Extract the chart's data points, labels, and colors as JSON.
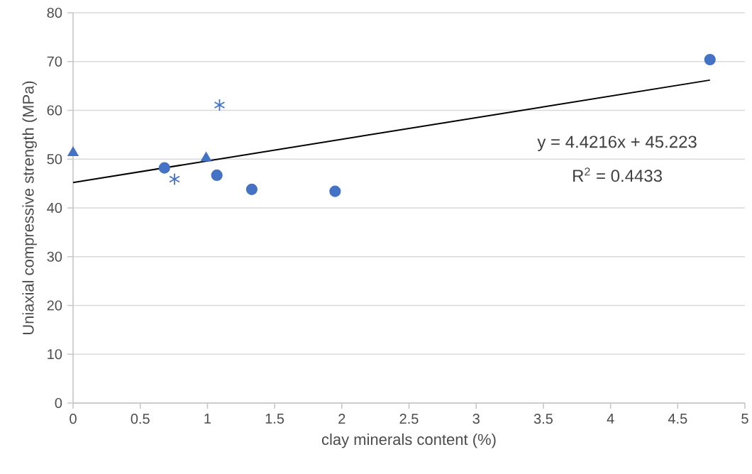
{
  "chart_data": {
    "type": "scatter",
    "xlabel": "clay minerals content (%)",
    "ylabel": "Uniaxial compressive strength (MPa)",
    "xlim": [
      0,
      5
    ],
    "xticks": [
      0,
      0.5,
      1,
      1.5,
      2,
      2.5,
      3,
      3.5,
      4,
      4.5,
      5
    ],
    "ylim": [
      0,
      80
    ],
    "yticks": [
      0,
      10,
      20,
      30,
      40,
      50,
      60,
      70,
      80
    ],
    "grid": "y",
    "series": [
      {
        "marker": "circle",
        "color": "#4472c4",
        "x": [
          0.68,
          1.07,
          1.33,
          1.95,
          4.74
        ],
        "values": [
          48.2,
          46.7,
          43.8,
          43.4,
          70.4
        ]
      },
      {
        "marker": "triangle",
        "color": "#4472c4",
        "x": [
          0,
          0.99
        ],
        "values": [
          51.3,
          50.2
        ]
      },
      {
        "marker": "cross",
        "color": "#4472c4",
        "x": [
          0.755,
          1.09
        ],
        "values": [
          45.9,
          61.1
        ]
      },
      {
        "type": "line",
        "marker": "none",
        "color": "#000000",
        "x": [
          0,
          4.74
        ],
        "values": [
          45.2,
          66.2
        ]
      }
    ],
    "annotations": [
      "y = 4.4216x + 45.223",
      "R$^{2}$ = 0.4433"
    ]
  }
}
